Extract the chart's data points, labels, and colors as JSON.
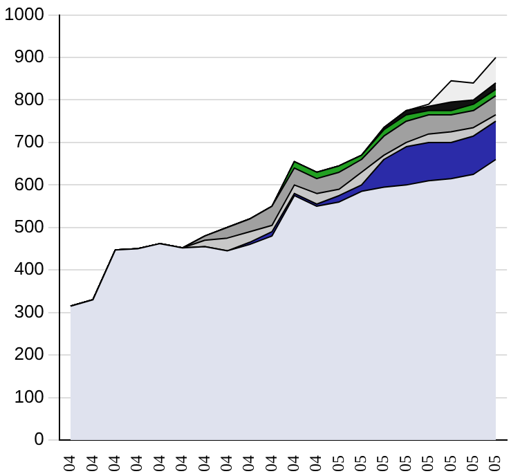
{
  "chart_data": {
    "type": "area",
    "stacked": true,
    "categories": [
      "04",
      "04",
      "04",
      "04",
      "04",
      "04",
      "04",
      "04",
      "04",
      "04",
      "04",
      "04",
      "05",
      "05",
      "05",
      "05",
      "05",
      "05",
      "05",
      "05"
    ],
    "series": [
      {
        "color": "#dfe2ee",
        "values": [
          315,
          330,
          447,
          450,
          462,
          452,
          455,
          445,
          460,
          480,
          575,
          550,
          560,
          585,
          595,
          600,
          610,
          615,
          625,
          660
        ]
      },
      {
        "color": "#2b2ba8",
        "values": [
          0,
          0,
          0,
          0,
          0,
          0,
          0,
          0,
          5,
          10,
          5,
          5,
          15,
          15,
          65,
          90,
          90,
          85,
          90,
          90
        ]
      },
      {
        "color": "#c8c8c8",
        "values": [
          0,
          0,
          0,
          0,
          0,
          0,
          15,
          30,
          25,
          15,
          20,
          25,
          15,
          30,
          10,
          10,
          20,
          25,
          20,
          15
        ]
      },
      {
        "color": "#a0a0a0",
        "values": [
          0,
          0,
          0,
          0,
          0,
          0,
          10,
          25,
          30,
          45,
          40,
          35,
          40,
          30,
          45,
          50,
          45,
          40,
          40,
          45
        ]
      },
      {
        "color": "#22a022",
        "values": [
          0,
          0,
          0,
          0,
          0,
          0,
          0,
          0,
          0,
          0,
          15,
          15,
          15,
          10,
          15,
          15,
          10,
          10,
          15,
          15
        ]
      },
      {
        "color": "#111111",
        "values": [
          0,
          0,
          0,
          0,
          0,
          0,
          0,
          0,
          0,
          0,
          0,
          0,
          0,
          0,
          5,
          10,
          10,
          20,
          10,
          15
        ]
      },
      {
        "color": "#eeeeee",
        "values": [
          0,
          0,
          0,
          0,
          0,
          0,
          0,
          0,
          0,
          0,
          0,
          0,
          0,
          0,
          0,
          0,
          5,
          50,
          40,
          60
        ]
      }
    ],
    "ylim": [
      0,
      1000
    ],
    "yticks": [
      0,
      100,
      200,
      300,
      400,
      500,
      600,
      700,
      800,
      900,
      1000
    ],
    "grid": "y",
    "legend": false
  }
}
